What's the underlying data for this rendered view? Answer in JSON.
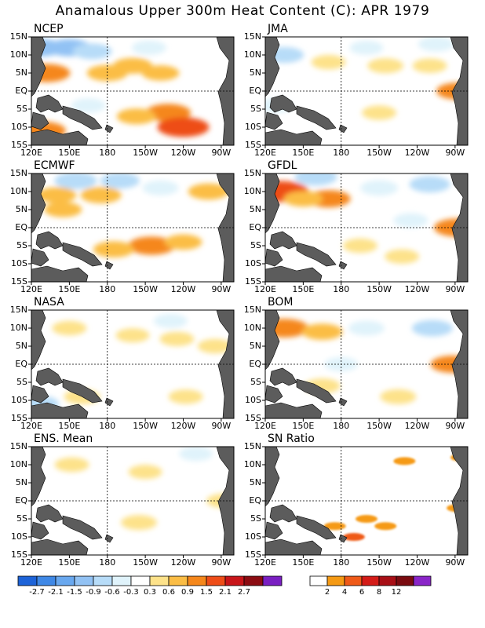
{
  "title": "Anamalous Upper 300m Heat Content (C): APR 1979",
  "colors": {
    "land": "#5c5c5c",
    "scale_anom": [
      "#1d63d8",
      "#3f88e6",
      "#69a8ef",
      "#92c2f4",
      "#b7dcf8",
      "#e0f3fb",
      "#ffffff",
      "#fde28a",
      "#fbbd45",
      "#f5871b",
      "#ee4d18",
      "#c8151a",
      "#8c0c12",
      "#7a1fc2"
    ],
    "scale_sn": [
      "#ffffff",
      "#f59a14",
      "#ef5a18",
      "#d41c18",
      "#a80f16",
      "#7a0b10",
      "#8a25c8"
    ]
  },
  "axes": {
    "x_ticks": [
      "120E",
      "150E",
      "180",
      "150W",
      "120W",
      "90W"
    ],
    "y_ticks": [
      "15N",
      "10N",
      "5N",
      "EQ",
      "5S",
      "10S",
      "15S"
    ]
  },
  "colorbar_anom": {
    "labels": [
      "-2.7",
      "-2.1",
      "-1.5",
      "-0.9",
      "-0.6",
      "-0.3",
      "0.3",
      "0.6",
      "0.9",
      "1.5",
      "2.1",
      "2.7"
    ]
  },
  "colorbar_sn": {
    "labels": [
      "2",
      "4",
      "6",
      "8",
      "12"
    ]
  },
  "chart_data": [
    {
      "type": "heatmap",
      "title": "NCEP",
      "xlim": [
        120,
        280
      ],
      "ylim": [
        -15,
        15
      ],
      "features": [
        {
          "lon": 180,
          "lat": 5,
          "v": 0.8
        },
        {
          "lon": 200,
          "lat": 7,
          "v": 0.7
        },
        {
          "lon": 222,
          "lat": 5,
          "v": 0.6
        },
        {
          "lon": 132,
          "lat": 5,
          "v": 1.2
        },
        {
          "lon": 228,
          "lat": -6,
          "v": 1.1
        },
        {
          "lon": 240,
          "lat": -10,
          "v": 1.5
        },
        {
          "lon": 203,
          "lat": -7,
          "v": 0.7
        },
        {
          "lon": 128,
          "lat": -11,
          "v": 1.3
        },
        {
          "lon": 128,
          "lat": 12,
          "v": -1.0
        },
        {
          "lon": 150,
          "lat": 12,
          "v": -1.0
        },
        {
          "lon": 168,
          "lat": 11,
          "v": -0.7
        },
        {
          "lon": 213,
          "lat": 12,
          "v": -0.4
        },
        {
          "lon": 165,
          "lat": -4,
          "v": -0.4
        }
      ]
    },
    {
      "type": "heatmap",
      "title": "JMA",
      "xlim": [
        120,
        280
      ],
      "ylim": [
        -15,
        15
      ],
      "features": [
        {
          "lon": 170,
          "lat": 8,
          "v": 0.4
        },
        {
          "lon": 215,
          "lat": 7,
          "v": 0.5
        },
        {
          "lon": 250,
          "lat": 7,
          "v": 0.4
        },
        {
          "lon": 210,
          "lat": -6,
          "v": 0.4
        },
        {
          "lon": 272,
          "lat": 0,
          "v": 0.9
        },
        {
          "lon": 135,
          "lat": 10,
          "v": -0.7
        },
        {
          "lon": 128,
          "lat": -4,
          "v": -0.4
        },
        {
          "lon": 255,
          "lat": 13,
          "v": -0.5
        },
        {
          "lon": 200,
          "lat": 12,
          "v": -0.35
        }
      ]
    },
    {
      "type": "heatmap",
      "title": "ECMWF",
      "xlim": [
        120,
        280
      ],
      "ylim": [
        -15,
        15
      ],
      "features": [
        {
          "lon": 140,
          "lat": 9,
          "v": 0.7
        },
        {
          "lon": 175,
          "lat": 9,
          "v": 0.8
        },
        {
          "lon": 145,
          "lat": 5,
          "v": 0.6
        },
        {
          "lon": 215,
          "lat": -5,
          "v": 1.2
        },
        {
          "lon": 185,
          "lat": -6,
          "v": 0.8
        },
        {
          "lon": 240,
          "lat": -4,
          "v": 0.6
        },
        {
          "lon": 260,
          "lat": 10,
          "v": 0.8
        },
        {
          "lon": 155,
          "lat": 13,
          "v": -0.9
        },
        {
          "lon": 190,
          "lat": 13,
          "v": -0.7
        },
        {
          "lon": 222,
          "lat": 11,
          "v": -0.5
        }
      ]
    },
    {
      "type": "heatmap",
      "title": "GFDL",
      "xlim": [
        120,
        280
      ],
      "ylim": [
        -15,
        15
      ],
      "features": [
        {
          "lon": 132,
          "lat": 10,
          "v": 1.8
        },
        {
          "lon": 170,
          "lat": 8,
          "v": 1.0
        },
        {
          "lon": 150,
          "lat": 8,
          "v": 0.7
        },
        {
          "lon": 272,
          "lat": 0,
          "v": 1.2
        },
        {
          "lon": 195,
          "lat": -5,
          "v": 0.4
        },
        {
          "lon": 228,
          "lat": -8,
          "v": 0.4
        },
        {
          "lon": 160,
          "lat": 14,
          "v": -0.9
        },
        {
          "lon": 210,
          "lat": 11,
          "v": -0.6
        },
        {
          "lon": 250,
          "lat": 12,
          "v": -0.8
        },
        {
          "lon": 235,
          "lat": 2,
          "v": -0.4
        }
      ]
    },
    {
      "type": "heatmap",
      "title": "NASA",
      "xlim": [
        120,
        280
      ],
      "ylim": [
        -15,
        15
      ],
      "features": [
        {
          "lon": 150,
          "lat": 10,
          "v": 0.4
        },
        {
          "lon": 200,
          "lat": 8,
          "v": 0.35
        },
        {
          "lon": 235,
          "lat": 7,
          "v": 0.4
        },
        {
          "lon": 265,
          "lat": 5,
          "v": 0.4
        },
        {
          "lon": 160,
          "lat": -9,
          "v": 0.5
        },
        {
          "lon": 242,
          "lat": -9,
          "v": 0.4
        },
        {
          "lon": 125,
          "lat": -11,
          "v": -0.9
        },
        {
          "lon": 230,
          "lat": 12,
          "v": -0.35
        }
      ]
    },
    {
      "type": "heatmap",
      "title": "BOM",
      "xlim": [
        120,
        280
      ],
      "ylim": [
        -15,
        15
      ],
      "features": [
        {
          "lon": 135,
          "lat": 10,
          "v": 1.3
        },
        {
          "lon": 165,
          "lat": 9,
          "v": 0.8
        },
        {
          "lon": 268,
          "lat": 0,
          "v": 1.0
        },
        {
          "lon": 165,
          "lat": -6,
          "v": 0.5
        },
        {
          "lon": 225,
          "lat": -9,
          "v": 0.5
        },
        {
          "lon": 200,
          "lat": 10,
          "v": -0.5
        },
        {
          "lon": 252,
          "lat": 10,
          "v": -0.8
        },
        {
          "lon": 180,
          "lat": 0,
          "v": -0.35
        }
      ]
    },
    {
      "type": "heatmap",
      "title": "ENS. Mean",
      "xlim": [
        120,
        280
      ],
      "ylim": [
        -15,
        15
      ],
      "features": [
        {
          "lon": 152,
          "lat": 10,
          "v": 0.4
        },
        {
          "lon": 210,
          "lat": 8,
          "v": 0.35
        },
        {
          "lon": 205,
          "lat": -6,
          "v": 0.5
        },
        {
          "lon": 272,
          "lat": 0,
          "v": 0.4
        },
        {
          "lon": 250,
          "lat": 13,
          "v": -0.35
        }
      ]
    },
    {
      "type": "heatmap",
      "title": "SN Ratio",
      "xlim": [
        120,
        280
      ],
      "ylim": [
        -15,
        15
      ],
      "features": [
        {
          "lon": 175,
          "lat": -7,
          "v": 3.5
        },
        {
          "lon": 200,
          "lat": -5,
          "v": 3.0
        },
        {
          "lon": 215,
          "lat": -7,
          "v": 3.0
        },
        {
          "lon": 190,
          "lat": -10,
          "v": 4.5
        },
        {
          "lon": 272,
          "lat": -2,
          "v": 2.5
        },
        {
          "lon": 275,
          "lat": 12,
          "v": 2.5
        },
        {
          "lon": 230,
          "lat": 11,
          "v": 2.5
        }
      ]
    }
  ]
}
